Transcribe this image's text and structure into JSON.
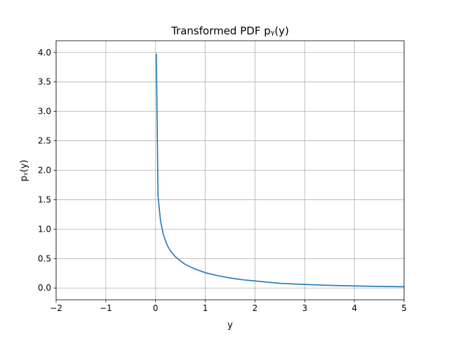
{
  "chart_data": {
    "type": "line",
    "title": "Transformed PDF pᵧ(y)",
    "xlabel": "y",
    "ylabel": "pᵧ(y)",
    "xlim": [
      -2,
      5
    ],
    "ylim": [
      -0.2,
      4.2
    ],
    "x_ticks": [
      -2,
      -1,
      0,
      1,
      2,
      3,
      4,
      5
    ],
    "x_tick_labels": [
      "−2",
      "−1",
      "0",
      "1",
      "2",
      "3",
      "4",
      "5"
    ],
    "y_ticks": [
      0.0,
      0.5,
      1.0,
      1.5,
      2.0,
      2.5,
      3.0,
      3.5,
      4.0
    ],
    "y_tick_labels": [
      "0.0",
      "0.5",
      "1.0",
      "1.5",
      "2.0",
      "2.5",
      "3.0",
      "3.5",
      "4.0"
    ],
    "grid": true,
    "series": [
      {
        "color": "#1f77b4",
        "x": [
          0.0157,
          0.05,
          0.1,
          0.15,
          0.2,
          0.25,
          0.3,
          0.4,
          0.5,
          0.6,
          0.7,
          0.8,
          1.0,
          1.25,
          1.5,
          1.75,
          2.0,
          2.5,
          3.0,
          3.5,
          4.0,
          4.5,
          5.0
        ],
        "y": [
          3.98,
          1.56,
          1.14,
          0.93,
          0.8,
          0.7,
          0.63,
          0.53,
          0.46,
          0.4,
          0.36,
          0.32,
          0.26,
          0.21,
          0.17,
          0.14,
          0.12,
          0.08,
          0.06,
          0.045,
          0.035,
          0.027,
          0.021
        ]
      }
    ]
  }
}
